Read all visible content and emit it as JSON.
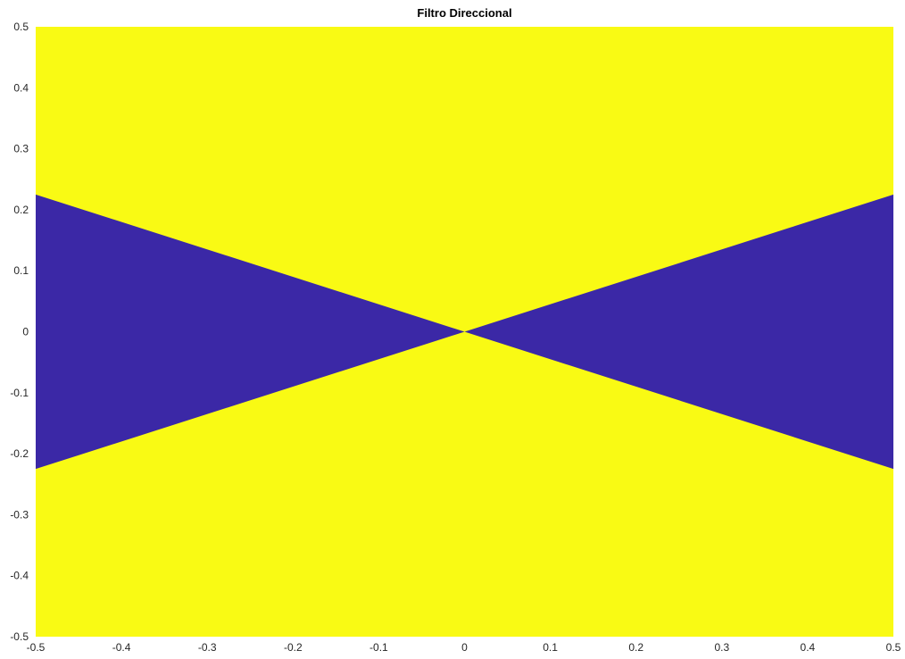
{
  "chart_data": {
    "type": "heatmap",
    "title": "Filtro Direccional",
    "xlabel": "",
    "ylabel": "",
    "xlim": [
      -0.5,
      0.5
    ],
    "ylim": [
      -0.5,
      0.5
    ],
    "xticks": [
      -0.5,
      -0.4,
      -0.3,
      -0.2,
      -0.1,
      0,
      0.1,
      0.2,
      0.3,
      0.4,
      0.5
    ],
    "yticks": [
      -0.5,
      -0.4,
      -0.3,
      -0.2,
      -0.1,
      0,
      0.1,
      0.2,
      0.3,
      0.4,
      0.5
    ],
    "xtick_labels": [
      "-0.5",
      "-0.4",
      "-0.3",
      "-0.2",
      "-0.1",
      "0",
      "0.1",
      "0.2",
      "0.3",
      "0.4",
      "0.5"
    ],
    "ytick_labels": [
      "-0.5",
      "-0.4",
      "-0.3",
      "-0.2",
      "-0.1",
      "0",
      "0.1",
      "0.2",
      "0.3",
      "0.4",
      "0.5"
    ],
    "grid": false,
    "background_color": "#f9fa14",
    "regions": [
      {
        "value": 0,
        "color": "#3b28a6",
        "vertices": [
          [
            -0.5,
            0.225
          ],
          [
            0,
            0
          ],
          [
            -0.5,
            -0.225
          ]
        ]
      },
      {
        "value": 0,
        "color": "#3b28a6",
        "vertices": [
          [
            0.5,
            0.225
          ],
          [
            0,
            0
          ],
          [
            0.5,
            -0.225
          ]
        ]
      }
    ],
    "fill_value": 1,
    "fill_color": "#f9fa14"
  }
}
